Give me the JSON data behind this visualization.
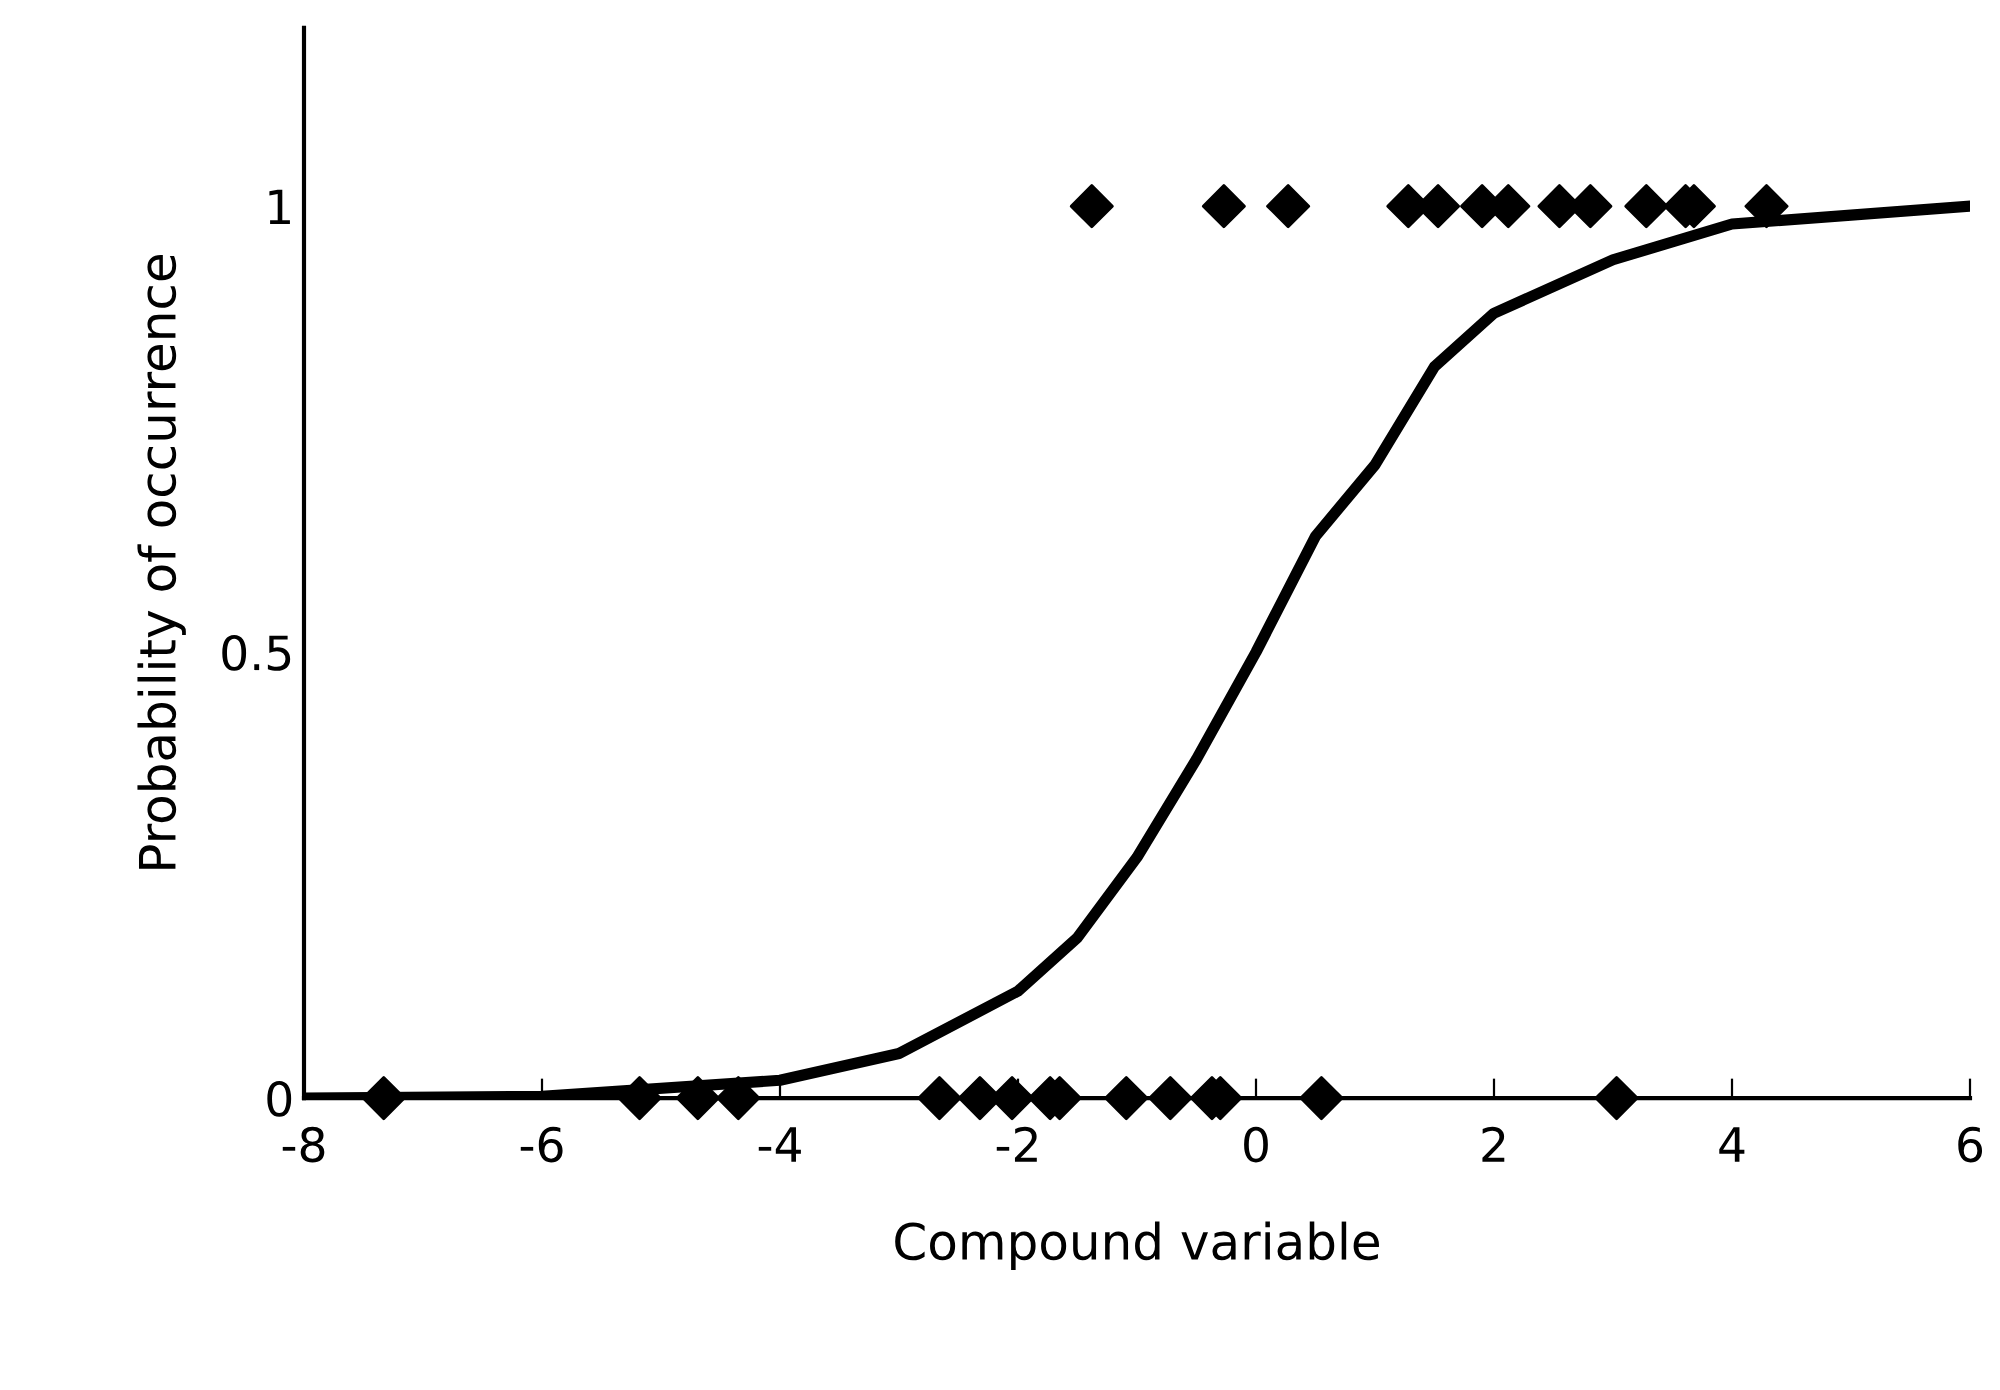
{
  "chart_data": {
    "type": "scatter",
    "xlabel": "Compound variable",
    "ylabel": "Probability of occurrence",
    "xlim": [
      -8,
      6
    ],
    "xticks": [
      -8,
      -6,
      -4,
      -2,
      0,
      2,
      4,
      6
    ],
    "ylim": [
      0,
      1.2
    ],
    "yticks": [
      0,
      0.5,
      1
    ],
    "grid": false,
    "legend": false,
    "series": [
      {
        "marker": "diamond",
        "color": "#000000",
        "x": [
          -1.38,
          -0.27,
          0.27,
          1.28,
          1.53,
          1.9,
          2.12,
          2.55,
          2.81,
          3.28,
          3.61,
          3.68,
          4.29,
          -7.33,
          -5.18,
          -4.69,
          -4.35,
          -2.66,
          -2.32,
          -2.05,
          -1.73,
          -1.65,
          -1.09,
          -0.72,
          -0.37,
          -0.3,
          0.55,
          3.03
        ],
        "values": [
          1,
          1,
          1,
          1,
          1,
          1,
          1,
          1,
          1,
          1,
          1,
          1,
          1,
          0,
          0,
          0,
          0,
          0,
          0,
          0,
          0,
          0,
          0,
          0,
          0,
          0,
          0,
          0
        ]
      },
      {
        "type": "line",
        "marker": "none",
        "line_style": "solid",
        "color": "#000000",
        "x": [
          -8,
          -6,
          -4,
          -3,
          -2,
          -1.5,
          -1,
          -0.5,
          0,
          0.5,
          1,
          1.5,
          2,
          3,
          4,
          5,
          6
        ],
        "values": [
          0,
          0.002,
          0.02,
          0.05,
          0.12,
          0.18,
          0.27,
          0.38,
          0.5,
          0.63,
          0.71,
          0.82,
          0.88,
          0.94,
          0.98,
          0.99,
          1.0
        ]
      }
    ]
  }
}
